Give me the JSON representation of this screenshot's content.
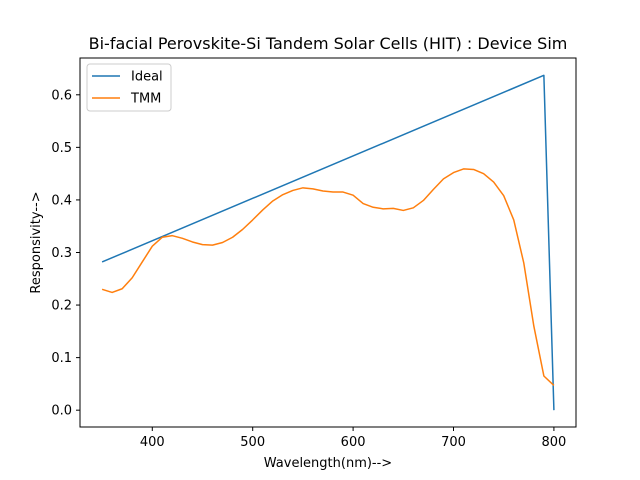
{
  "chart_data": {
    "type": "line",
    "title": "Bi-facial Perovskite-Si Tandem Solar Cells (HIT) : Device Sim",
    "xlabel": "Wavelength(nm)-->",
    "ylabel": "Responsivity-->",
    "xlim": [
      328,
      822
    ],
    "ylim": [
      -0.032,
      0.67
    ],
    "xticks": [
      400,
      500,
      600,
      700,
      800
    ],
    "yticks": [
      0.0,
      0.1,
      0.2,
      0.3,
      0.4,
      0.5,
      0.6
    ],
    "xtick_labels": [
      "400",
      "500",
      "600",
      "700",
      "800"
    ],
    "ytick_labels": [
      "0.0",
      "0.1",
      "0.2",
      "0.3",
      "0.4",
      "0.5",
      "0.6"
    ],
    "grid": false,
    "legend_position": "upper-left",
    "series": [
      {
        "name": "Ideal",
        "color": "#1f77b4",
        "x": [
          350,
          790,
          800
        ],
        "y": [
          0.282,
          0.637,
          0.0
        ]
      },
      {
        "name": "TMM",
        "color": "#ff7f0e",
        "x": [
          350,
          360,
          370,
          380,
          390,
          400,
          410,
          420,
          430,
          440,
          450,
          460,
          470,
          480,
          490,
          500,
          510,
          520,
          530,
          540,
          550,
          560,
          570,
          580,
          590,
          600,
          610,
          620,
          630,
          640,
          650,
          660,
          670,
          680,
          690,
          700,
          710,
          720,
          730,
          740,
          750,
          760,
          770,
          780,
          790,
          800
        ],
        "y": [
          0.23,
          0.224,
          0.231,
          0.252,
          0.282,
          0.312,
          0.329,
          0.332,
          0.327,
          0.32,
          0.315,
          0.314,
          0.319,
          0.329,
          0.344,
          0.362,
          0.381,
          0.398,
          0.41,
          0.418,
          0.423,
          0.421,
          0.417,
          0.415,
          0.415,
          0.409,
          0.393,
          0.386,
          0.383,
          0.384,
          0.38,
          0.385,
          0.399,
          0.42,
          0.44,
          0.452,
          0.459,
          0.458,
          0.45,
          0.434,
          0.408,
          0.362,
          0.28,
          0.16,
          0.065,
          0.047
        ]
      }
    ]
  }
}
